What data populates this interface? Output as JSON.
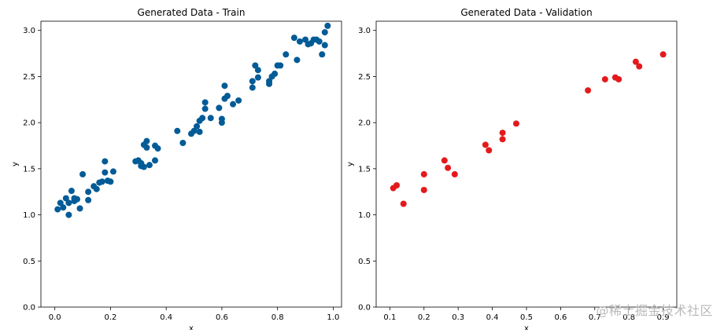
{
  "watermark": "@稀土掘金技术社区",
  "colors": {
    "train": "#005b96",
    "validation": "#e31a1c"
  },
  "chart_data": [
    {
      "type": "scatter",
      "title": "Generated Data - Train",
      "xlabel": "x",
      "ylabel": "y",
      "xlim": [
        -0.05,
        1.03
      ],
      "ylim": [
        0.0,
        3.1
      ],
      "xticks": [
        "0.0",
        "0.2",
        "0.4",
        "0.6",
        "0.8",
        "1.0"
      ],
      "xtick_values": [
        0.0,
        0.2,
        0.4,
        0.6,
        0.8,
        1.0
      ],
      "yticks": [
        "0.0",
        "0.5",
        "1.0",
        "1.5",
        "2.0",
        "2.5",
        "3.0"
      ],
      "ytick_values": [
        0.0,
        0.5,
        1.0,
        1.5,
        2.0,
        2.5,
        3.0
      ],
      "grid": false,
      "points": [
        [
          0.01,
          1.06
        ],
        [
          0.02,
          1.13
        ],
        [
          0.03,
          1.08
        ],
        [
          0.04,
          1.18
        ],
        [
          0.05,
          1.0
        ],
        [
          0.05,
          1.13
        ],
        [
          0.06,
          1.26
        ],
        [
          0.07,
          1.18
        ],
        [
          0.07,
          1.15
        ],
        [
          0.08,
          1.17
        ],
        [
          0.09,
          1.07
        ],
        [
          0.1,
          1.44
        ],
        [
          0.12,
          1.16
        ],
        [
          0.12,
          1.25
        ],
        [
          0.14,
          1.31
        ],
        [
          0.15,
          1.28
        ],
        [
          0.16,
          1.35
        ],
        [
          0.17,
          1.36
        ],
        [
          0.18,
          1.58
        ],
        [
          0.18,
          1.46
        ],
        [
          0.19,
          1.37
        ],
        [
          0.2,
          1.36
        ],
        [
          0.21,
          1.47
        ],
        [
          0.29,
          1.58
        ],
        [
          0.3,
          1.59
        ],
        [
          0.31,
          1.53
        ],
        [
          0.31,
          1.56
        ],
        [
          0.32,
          1.76
        ],
        [
          0.32,
          1.52
        ],
        [
          0.33,
          1.8
        ],
        [
          0.33,
          1.73
        ],
        [
          0.34,
          1.54
        ],
        [
          0.36,
          1.59
        ],
        [
          0.36,
          1.75
        ],
        [
          0.37,
          1.72
        ],
        [
          0.44,
          1.91
        ],
        [
          0.46,
          1.78
        ],
        [
          0.49,
          1.88
        ],
        [
          0.5,
          1.91
        ],
        [
          0.51,
          1.96
        ],
        [
          0.52,
          1.9
        ],
        [
          0.52,
          2.02
        ],
        [
          0.53,
          2.05
        ],
        [
          0.54,
          2.22
        ],
        [
          0.54,
          2.15
        ],
        [
          0.56,
          2.05
        ],
        [
          0.59,
          2.16
        ],
        [
          0.6,
          2.04
        ],
        [
          0.6,
          2.0
        ],
        [
          0.61,
          2.4
        ],
        [
          0.61,
          2.26
        ],
        [
          0.62,
          2.29
        ],
        [
          0.64,
          2.2
        ],
        [
          0.66,
          2.24
        ],
        [
          0.71,
          2.38
        ],
        [
          0.71,
          2.45
        ],
        [
          0.72,
          2.62
        ],
        [
          0.73,
          2.49
        ],
        [
          0.73,
          2.57
        ],
        [
          0.77,
          2.45
        ],
        [
          0.77,
          2.42
        ],
        [
          0.78,
          2.5
        ],
        [
          0.79,
          2.53
        ],
        [
          0.8,
          2.62
        ],
        [
          0.81,
          2.62
        ],
        [
          0.83,
          2.74
        ],
        [
          0.86,
          2.92
        ],
        [
          0.87,
          2.68
        ],
        [
          0.88,
          2.88
        ],
        [
          0.9,
          2.9
        ],
        [
          0.91,
          2.85
        ],
        [
          0.92,
          2.86
        ],
        [
          0.93,
          2.9
        ],
        [
          0.94,
          2.9
        ],
        [
          0.95,
          2.88
        ],
        [
          0.96,
          2.74
        ],
        [
          0.97,
          2.84
        ],
        [
          0.97,
          2.98
        ],
        [
          0.98,
          3.05
        ]
      ]
    },
    {
      "type": "scatter",
      "title": "Generated Data - Validation",
      "xlabel": "x",
      "ylabel": "y",
      "xlim": [
        0.06,
        0.94
      ],
      "ylim": [
        0.0,
        3.1
      ],
      "xticks": [
        "0.1",
        "0.2",
        "0.3",
        "0.4",
        "0.5",
        "0.6",
        "0.7",
        "0.8",
        "0.9"
      ],
      "xtick_values": [
        0.1,
        0.2,
        0.3,
        0.4,
        0.5,
        0.6,
        0.7,
        0.8,
        0.9
      ],
      "yticks": [
        "0.0",
        "0.5",
        "1.0",
        "1.5",
        "2.0",
        "2.5",
        "3.0"
      ],
      "ytick_values": [
        0.0,
        0.5,
        1.0,
        1.5,
        2.0,
        2.5,
        3.0
      ],
      "grid": false,
      "points": [
        [
          0.11,
          1.29
        ],
        [
          0.12,
          1.32
        ],
        [
          0.14,
          1.12
        ],
        [
          0.2,
          1.44
        ],
        [
          0.2,
          1.27
        ],
        [
          0.26,
          1.59
        ],
        [
          0.27,
          1.51
        ],
        [
          0.29,
          1.44
        ],
        [
          0.38,
          1.76
        ],
        [
          0.39,
          1.7
        ],
        [
          0.43,
          1.89
        ],
        [
          0.43,
          1.82
        ],
        [
          0.47,
          1.99
        ],
        [
          0.68,
          2.35
        ],
        [
          0.73,
          2.47
        ],
        [
          0.76,
          2.49
        ],
        [
          0.77,
          2.47
        ],
        [
          0.82,
          2.66
        ],
        [
          0.83,
          2.61
        ],
        [
          0.9,
          2.74
        ]
      ]
    }
  ]
}
